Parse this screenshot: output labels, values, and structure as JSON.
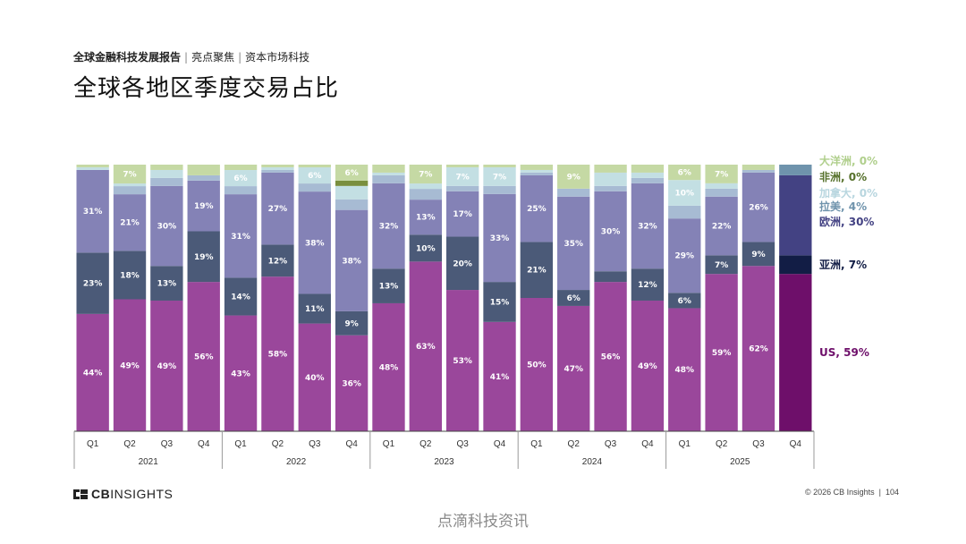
{
  "header": {
    "report": "全球金融科技发展报告",
    "section": "亮点聚焦",
    "topic": "资本市场科技",
    "title": "全球各地区季度交易占比"
  },
  "colors": {
    "US": "#9a479b",
    "亚洲": "#4b5a78",
    "欧洲": "#8482b6",
    "拉美": "#a7bbd3",
    "加拿大": "#c3dfe3",
    "非洲": "#7a8f3e",
    "大洋洲": "#c5d9a4",
    "US_hl": "#6e0f6a",
    "亚洲_hl": "#121d45",
    "欧洲_hl": "#434283",
    "拉美_hl": "#6f93ac",
    "加拿大_hl": "#b8d6df",
    "非洲_hl": "#55702a",
    "大洋洲_hl": "#b0cf8c"
  },
  "chart_data": {
    "type": "bar",
    "stacked": true,
    "percent": true,
    "ylim": [
      0,
      100
    ],
    "categories": [
      "Q1",
      "Q2",
      "Q3",
      "Q4",
      "Q1",
      "Q2",
      "Q3",
      "Q4",
      "Q1",
      "Q2",
      "Q3",
      "Q4",
      "Q1",
      "Q2",
      "Q3",
      "Q4",
      "Q1",
      "Q2",
      "Q3",
      "Q4"
    ],
    "years": [
      {
        "label": "2021",
        "quarters": 4
      },
      {
        "label": "2022",
        "quarters": 4
      },
      {
        "label": "2023",
        "quarters": 4
      },
      {
        "label": "2024",
        "quarters": 4
      },
      {
        "label": "2025",
        "quarters": 4
      }
    ],
    "series": [
      {
        "name": "US",
        "values": [
          44,
          49,
          49,
          56,
          43,
          58,
          40,
          36,
          48,
          63,
          53,
          41,
          50,
          47,
          56,
          49,
          48,
          59,
          62,
          59
        ]
      },
      {
        "name": "亚洲",
        "values": [
          23,
          18,
          13,
          19,
          14,
          12,
          11,
          9,
          13,
          10,
          20,
          15,
          21,
          6,
          4,
          12,
          6,
          7,
          9,
          7
        ]
      },
      {
        "name": "欧洲",
        "values": [
          31,
          21,
          30,
          19,
          31,
          27,
          38,
          38,
          32,
          13,
          17,
          33,
          25,
          35,
          30,
          32,
          29,
          22,
          26,
          30
        ]
      },
      {
        "name": "拉美",
        "values": [
          0,
          3,
          3,
          2,
          3,
          1,
          3,
          4,
          3,
          4,
          2,
          3,
          1,
          3,
          2,
          2,
          5,
          3,
          1,
          4
        ]
      },
      {
        "name": "加拿大",
        "values": [
          1,
          1,
          3,
          0,
          6,
          1,
          6,
          5,
          1,
          2,
          7,
          7,
          1,
          0,
          5,
          2,
          10,
          2,
          0,
          0
        ]
      },
      {
        "name": "非洲",
        "values": [
          0,
          0,
          0,
          0,
          0,
          0,
          0,
          2,
          0,
          0,
          0,
          0,
          0,
          0,
          0,
          0,
          0,
          0,
          0,
          0
        ]
      },
      {
        "name": "大洋洲",
        "values": [
          1,
          7,
          2,
          4,
          2,
          1,
          1,
          6,
          3,
          7,
          1,
          1,
          2,
          9,
          3,
          3,
          6,
          7,
          2,
          0
        ]
      }
    ],
    "label_threshold": 6,
    "highlight_index": 19,
    "legend": [
      {
        "name": "大洋洲",
        "text": "大洋洲, 0%"
      },
      {
        "name": "非洲",
        "text": "非洲, 0%"
      },
      {
        "name": "加拿大",
        "text": "加拿大, 0%"
      },
      {
        "name": "拉美",
        "text": "拉美, 4%"
      },
      {
        "name": "欧洲",
        "text": "欧洲, 30%"
      },
      {
        "name": "亚洲",
        "text": "亚洲, 7%"
      },
      {
        "name": "US",
        "text": "US, 59%"
      }
    ]
  },
  "footer": {
    "logo_prefix": "CB",
    "logo_suffix": "INSIGHTS",
    "copyright": "© 2026 CB Insights",
    "page": "104"
  },
  "watermark": "点滴科技资讯"
}
